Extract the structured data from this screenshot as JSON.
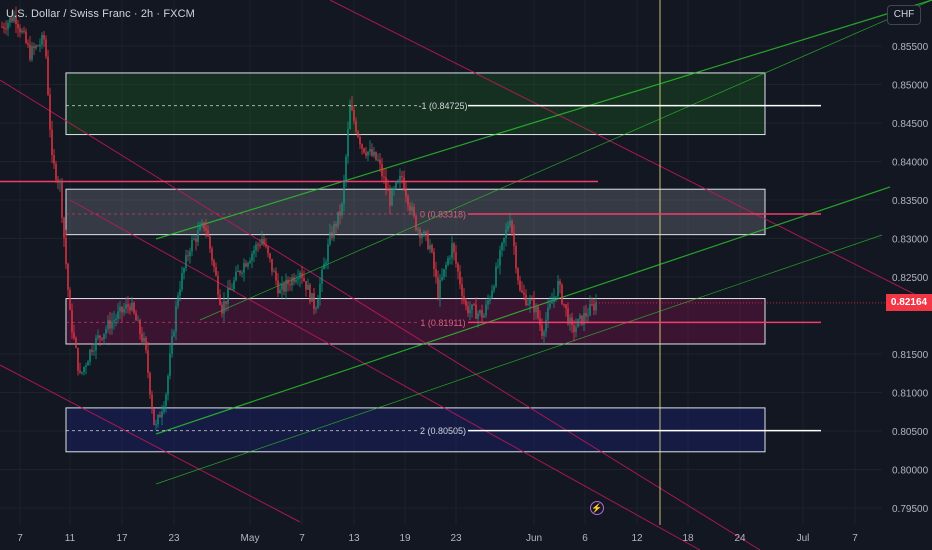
{
  "header": {
    "title": "U.S. Dollar / Swiss Franc · 2h · FXCM"
  },
  "currency_button": {
    "label": "CHF"
  },
  "last_price": {
    "label": "0.82164",
    "value": 0.82164,
    "color": "#f23645"
  },
  "alert": {
    "icon": "lightning-icon",
    "symbol": "⚡"
  },
  "chart_data": {
    "type": "candlestick",
    "x_axis": {
      "ticks": [
        "7",
        "11",
        "17",
        "23",
        "May",
        "7",
        "13",
        "19",
        "23",
        "Jun",
        "6",
        "12",
        "18",
        "24",
        "Jul",
        "7"
      ]
    },
    "y_axis": {
      "range": [
        0.7925,
        0.86
      ],
      "ticks": [
        0.855,
        0.85,
        0.845,
        0.84,
        0.835,
        0.83,
        0.825,
        0.815,
        0.81,
        0.805,
        0.8,
        0.795
      ],
      "tick_labels": [
        "0.85500",
        "0.85000",
        "0.84500",
        "0.84000",
        "0.83500",
        "0.83000",
        "0.82500",
        "0.81500",
        "0.81000",
        "0.80500",
        "0.80000",
        "0.79500"
      ]
    },
    "levels": [
      {
        "label": "-1 (0.84725)",
        "price": 0.84725,
        "line_color": "#ffffff",
        "label_color": "#d1d4dc"
      },
      {
        "label": "0 (0.83318)",
        "price": 0.83318,
        "line_color": "#f23c6e",
        "label_color": "#e0607e"
      },
      {
        "label": "1 (0.81911)",
        "price": 0.81911,
        "line_color": "#f23c6e",
        "label_color": "#e0607e"
      },
      {
        "label": "2 (0.80505)",
        "price": 0.80505,
        "line_color": "#ffffff",
        "label_color": "#d1d4dc"
      }
    ],
    "zones": [
      {
        "name": "zone-green",
        "top": 0.8515,
        "bottom": 0.8435,
        "color": "#1b5e20"
      },
      {
        "name": "zone-grey",
        "top": 0.8364,
        "bottom": 0.8305,
        "color": "#787b86"
      },
      {
        "name": "zone-red",
        "top": 0.8222,
        "bottom": 0.8163,
        "color": "#880e4f"
      },
      {
        "name": "zone-blue",
        "top": 0.808,
        "bottom": 0.8023,
        "color": "#1a237e"
      }
    ],
    "resistance_line": {
      "price": 0.8374,
      "color": "#f23c6e"
    },
    "colors": {
      "up": "#089981",
      "down": "#f23645",
      "channel": "#2bd32b",
      "trend": "#c2185b",
      "vline": "#f5e88a"
    }
  }
}
